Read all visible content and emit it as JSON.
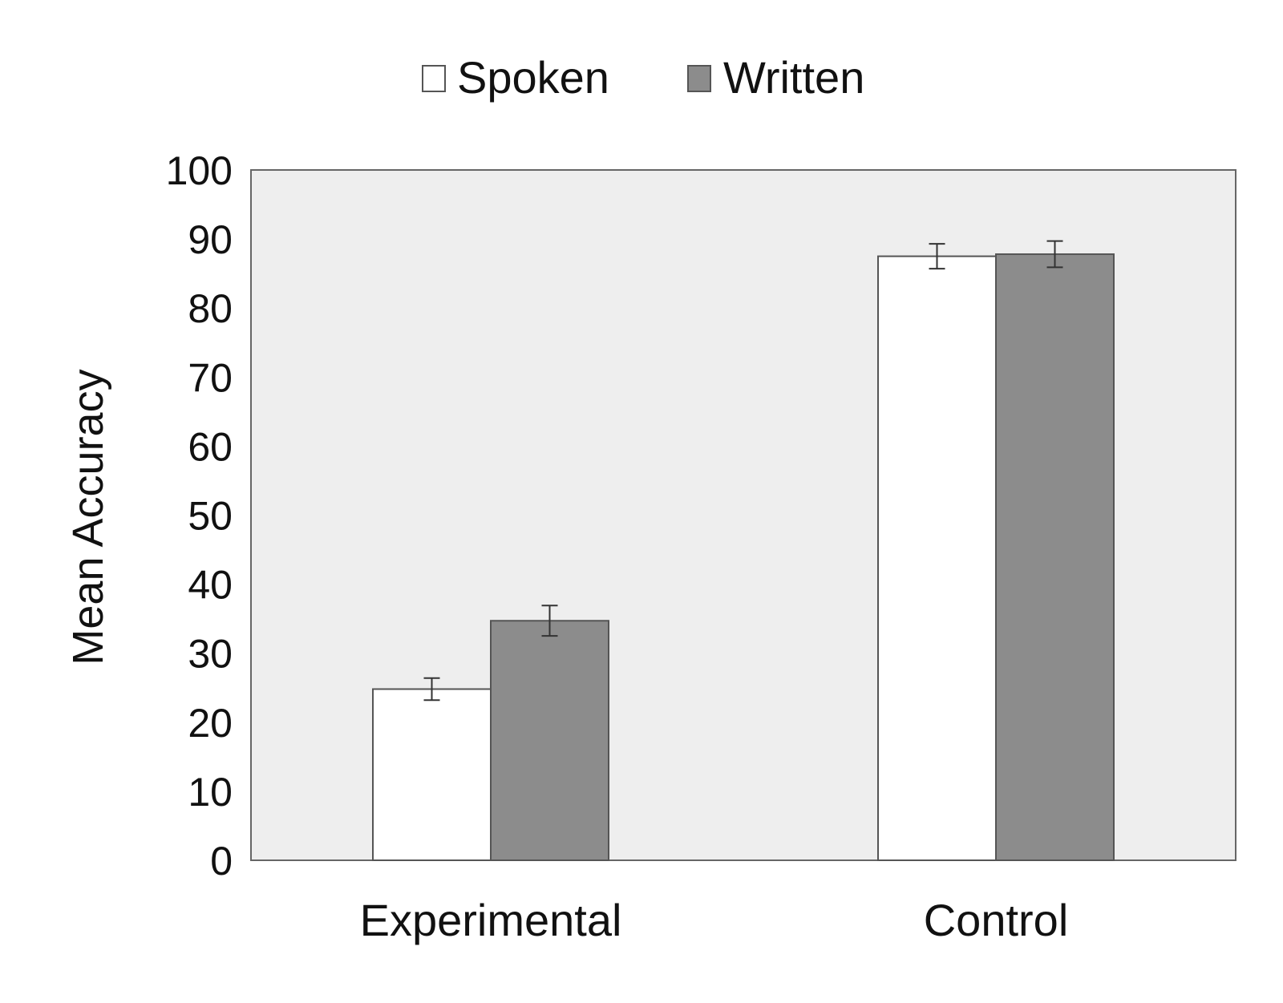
{
  "chart_data": {
    "type": "bar",
    "categories": [
      "Experimental",
      "Control"
    ],
    "series": [
      {
        "name": "Spoken",
        "values": [
          24.8,
          87.5
        ],
        "error": [
          1.6,
          1.8
        ],
        "color": "#ffffff"
      },
      {
        "name": "Written",
        "values": [
          34.7,
          87.8
        ],
        "error": [
          2.2,
          1.9
        ],
        "color": "#8c8c8c"
      }
    ],
    "title": "",
    "xlabel": "",
    "ylabel": "Mean Accuracy",
    "ylim": [
      0,
      100
    ],
    "yticks": [
      0,
      10,
      20,
      30,
      40,
      50,
      60,
      70,
      80,
      90,
      100
    ],
    "grid": false,
    "legend_position": "top-center",
    "plot_background": "#eeeeee",
    "bar_edge_color": "#555555"
  }
}
